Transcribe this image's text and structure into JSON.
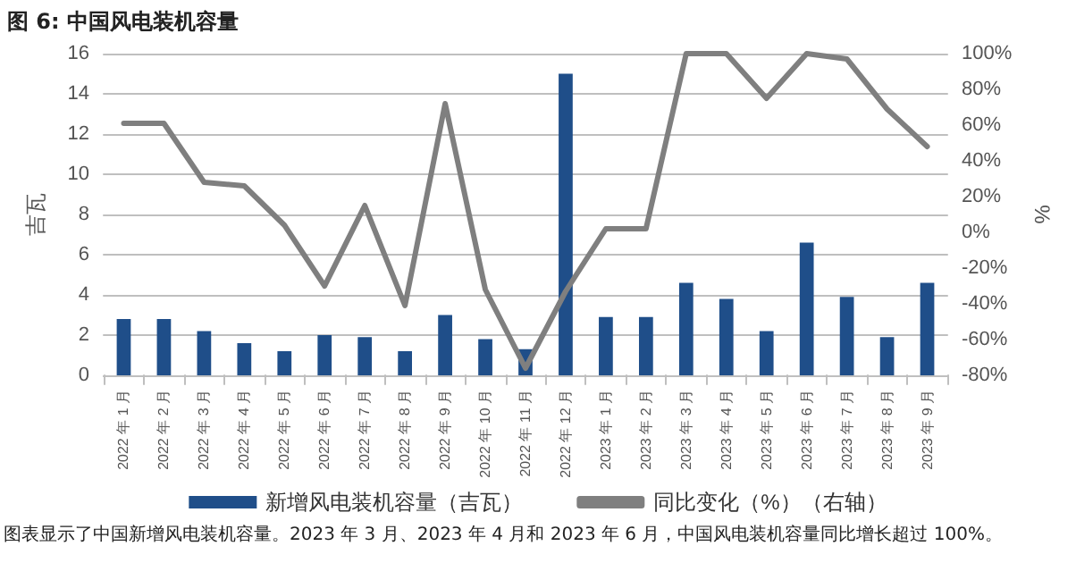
{
  "chart_data": {
    "type": "bar",
    "title": "图 6:  中国风电装机容量",
    "categories": [
      "2022 年 1 月",
      "2022 年 2 月",
      "2022 年 3 月",
      "2022 年 4 月",
      "2022 年 5 月",
      "2022 年 6 月",
      "2022 年 7 月",
      "2022 年 8 月",
      "2022 年 9 月",
      "2022 年 10 月",
      "2022 年 11 月",
      "2022 年 12 月",
      "2023 年 1 月",
      "2023 年 2 月",
      "2023 年 3 月",
      "2023 年 4 月",
      "2023 年 5 月",
      "2023 年 6 月",
      "2023 年 7 月",
      "2023 年 8 月",
      "2023 年 9 月"
    ],
    "series": [
      {
        "name": "新增风电装机容量（吉瓦）",
        "color": "#1f4e89",
        "values": [
          2.8,
          2.8,
          2.2,
          1.6,
          1.2,
          2.0,
          1.9,
          1.2,
          3.0,
          1.8,
          1.3,
          15.0,
          2.9,
          2.9,
          4.6,
          3.8,
          2.2,
          6.6,
          3.9,
          1.9,
          4.6
        ]
      },
      {
        "name": "同比变化（%）（右轴）",
        "type": "line",
        "axis": "y2",
        "color": "#7f7f7f",
        "values": [
          61,
          61,
          28,
          26,
          4,
          -30,
          15,
          -41,
          72,
          -32,
          -76,
          -33,
          2,
          2,
          100,
          100,
          75,
          100,
          97,
          69,
          48
        ]
      }
    ],
    "ylabel": "吉瓦",
    "y2label": "%",
    "ylim": [
      0,
      16
    ],
    "yticks": [
      0,
      2,
      4,
      6,
      8,
      10,
      12,
      14,
      16
    ],
    "y2lim": [
      -80,
      100
    ],
    "y2ticks": [
      {
        "value": -80,
        "label": "-80%"
      },
      {
        "value": -60,
        "label": "-60%"
      },
      {
        "value": -40,
        "label": "-40%"
      },
      {
        "value": -20,
        "label": "-20%"
      },
      {
        "value": 0,
        "label": "0%"
      },
      {
        "value": 20,
        "label": "20%"
      },
      {
        "value": 40,
        "label": "40%"
      },
      {
        "value": 60,
        "label": "60%"
      },
      {
        "value": 80,
        "label": "80%"
      },
      {
        "value": 100,
        "label": "100%"
      }
    ],
    "grid": "y",
    "legend": "bottom",
    "marker": "none",
    "line_style": "solid",
    "annotations": [
      "图表显示了中国新增风电装机容量。2023 年 3 月、2023 年 4 月和 2023 年 6 月，中国风电装机容量同比增长超过 100%。"
    ]
  }
}
